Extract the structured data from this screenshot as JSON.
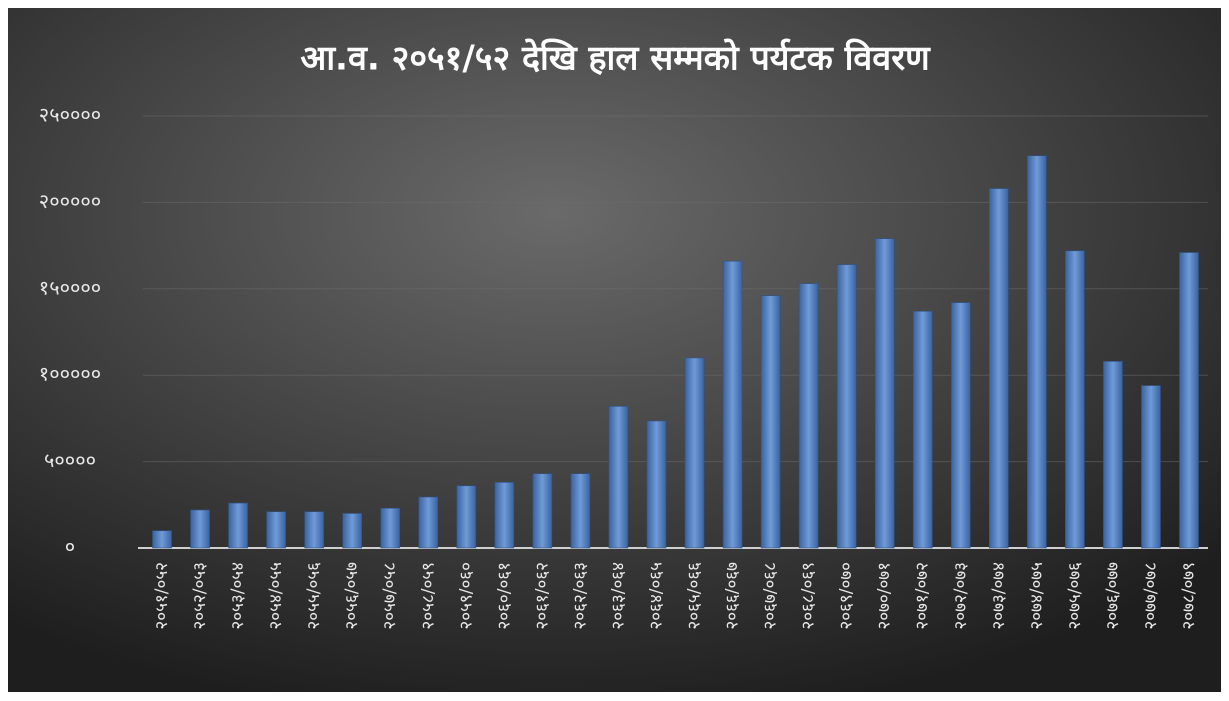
{
  "chart_data": {
    "type": "bar",
    "title": "आ.व. २०५१/५२ देखि हाल सम्मको पर्यटक विवरण",
    "categories": [
      "२०५१/०५२",
      "२०५२/०५३",
      "२०५३/०५४",
      "२०५४/०५५",
      "२०५५/०५६",
      "२०५६/०५७",
      "२०५७/०५८",
      "२०५८/०५९",
      "२०५९/०६०",
      "२०६०/०६१",
      "२०६१/०६२",
      "२०६२/०६३",
      "२०६३/०६४",
      "२०६४/०६५",
      "२०६५/०६६",
      "२०६६/०६७",
      "२०६७/०६८",
      "२०६८/०६९",
      "२०६९/०७०",
      "२०७०/०७१",
      "२०७१/०७२",
      "२०७२/०७३",
      "२०७३/०७४",
      "२०७४/०७५",
      "२०७५/०७६",
      "२०७६/०७७",
      "२०७७/०७८",
      "२०७८/०७९"
    ],
    "values": [
      10000,
      22000,
      26000,
      21000,
      21000,
      20000,
      23000,
      29500,
      36000,
      38000,
      43000,
      43000,
      82000,
      73500,
      110000,
      166000,
      146000,
      153000,
      164000,
      179000,
      137000,
      142000,
      208000,
      227000,
      172000,
      108000,
      94000,
      171000
    ],
    "color": "#4f81bd",
    "ylim": [
      0,
      250000
    ],
    "yticks": [
      {
        "value": 0,
        "label": "०"
      },
      {
        "value": 50000,
        "label": "५००००"
      },
      {
        "value": 100000,
        "label": "१०००००"
      },
      {
        "value": 150000,
        "label": "१५००००"
      },
      {
        "value": 200000,
        "label": "२०००००"
      },
      {
        "value": 250000,
        "label": "२५००००"
      }
    ],
    "grid": true
  }
}
